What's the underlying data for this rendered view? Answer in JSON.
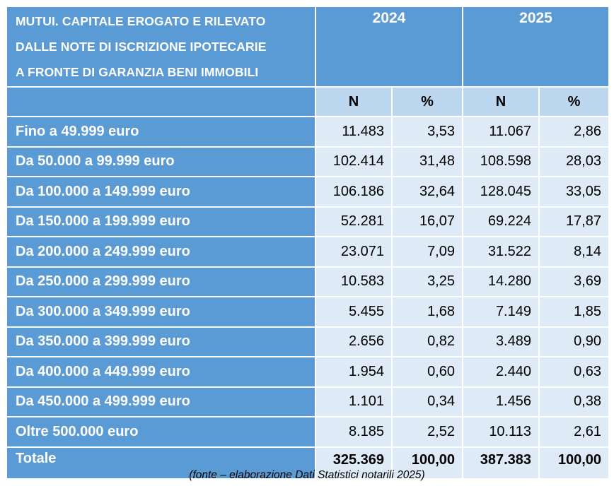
{
  "colors": {
    "header_bg": "#5b9bd5",
    "subheader_bg": "#bdd7ee",
    "label_bg": "#5b9bd5",
    "cell_bg": "#deebf7"
  },
  "table": {
    "title_lines": [
      "MUTUI. CAPITALE EROGATO E RILEVATO",
      "DALLE NOTE DI ISCRIZIONE IPOTECARIE",
      "A FRONTE DI GARANZIA BENI IMMOBILI"
    ],
    "years": [
      "2024",
      "2025"
    ],
    "subheaders": [
      "N",
      "%",
      "N",
      "%"
    ],
    "rows": [
      {
        "label": "Fino a 49.999 euro",
        "values": [
          "11.483",
          "3,53",
          "11.067",
          "2,86"
        ]
      },
      {
        "label": "Da 50.000 a 99.999 euro",
        "values": [
          "102.414",
          "31,48",
          "108.598",
          "28,03"
        ]
      },
      {
        "label": "Da 100.000 a 149.999 euro",
        "values": [
          "106.186",
          "32,64",
          "128.045",
          "33,05"
        ]
      },
      {
        "label": "Da 150.000 a 199.999 euro",
        "values": [
          "52.281",
          "16,07",
          "69.224",
          "17,87"
        ]
      },
      {
        "label": "Da 200.000 a 249.999 euro",
        "values": [
          "23.071",
          "7,09",
          "31.522",
          "8,14"
        ]
      },
      {
        "label": "Da 250.000 a 299.999 euro",
        "values": [
          "10.583",
          "3,25",
          "14.280",
          "3,69"
        ]
      },
      {
        "label": "Da 300.000 a 349.999 euro",
        "values": [
          "5.455",
          "1,68",
          "7.149",
          "1,85"
        ]
      },
      {
        "label": "Da 350.000 a 399.999 euro",
        "values": [
          "2.656",
          "0,82",
          "3.489",
          "0,90"
        ]
      },
      {
        "label": "Da 400.000 a 449.999 euro",
        "values": [
          "1.954",
          "0,60",
          "2.440",
          "0,63"
        ]
      },
      {
        "label": "Da 450.000 a 499.999 euro",
        "values": [
          "1.101",
          "0,34",
          "1.456",
          "0,38"
        ]
      },
      {
        "label": "Oltre 500.000 euro",
        "values": [
          "8.185",
          "2,52",
          "10.113",
          "2,61"
        ]
      }
    ],
    "total": {
      "label": "Totale",
      "values": [
        "325.369",
        "100,00",
        "387.383",
        "100,00"
      ]
    }
  },
  "caption": "(fonte – elaborazione Dati Statistici notarili 2025)"
}
